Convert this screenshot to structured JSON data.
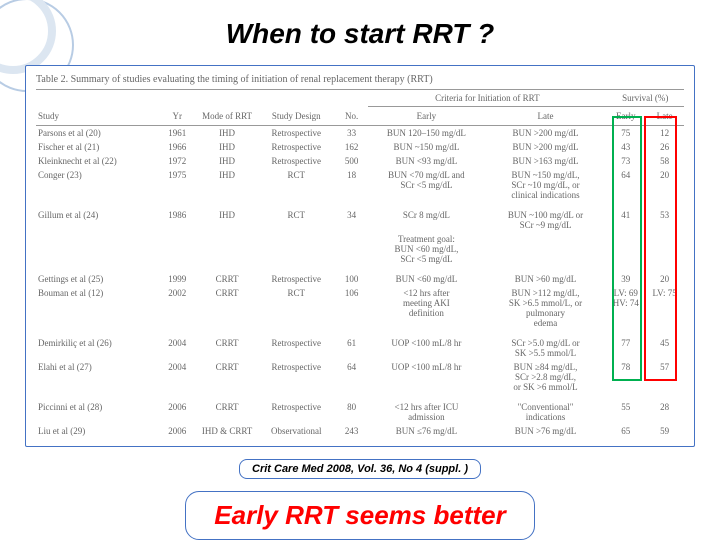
{
  "title": "When to start RRT ?",
  "table_caption": "Table 2. Summary of studies evaluating the timing of initiation of renal replacement therapy (RRT)",
  "spanner_criteria": "Criteria for Initiation of RRT",
  "spanner_survival": "Survival (%)",
  "headers": {
    "study": "Study",
    "yr": "Yr",
    "mode": "Mode of RRT",
    "design": "Study Design",
    "no": "No.",
    "early_crit": "Early",
    "late_crit": "Late",
    "early_surv": "Early",
    "late_surv": "Late"
  },
  "rows": [
    {
      "study": "Parsons et al (20)",
      "yr": "1961",
      "mode": "IHD",
      "design": "Retrospective",
      "no": "33",
      "ec": "BUN 120–150 mg/dL",
      "lc": "BUN >200 mg/dL",
      "es": "75",
      "ls": "12"
    },
    {
      "study": "Fischer et al (21)",
      "yr": "1966",
      "mode": "IHD",
      "design": "Retrospective",
      "no": "162",
      "ec": "BUN ~150 mg/dL",
      "lc": "BUN >200 mg/dL",
      "es": "43",
      "ls": "26"
    },
    {
      "study": "Kleinknecht et al (22)",
      "yr": "1972",
      "mode": "IHD",
      "design": "Retrospective",
      "no": "500",
      "ec": "BUN <93 mg/dL",
      "lc": "BUN >163 mg/dL",
      "es": "73",
      "ls": "58"
    },
    {
      "study": "Conger (23)",
      "yr": "1975",
      "mode": "IHD",
      "design": "RCT",
      "no": "18",
      "ec": "BUN <70 mg/dL and\nSCr <5 mg/dL",
      "lc": "BUN ~150 mg/dL,\nSCr ~10 mg/dL, or\nclinical indications",
      "es": "64",
      "ls": "20"
    },
    {
      "study": "Gillum et al (24)",
      "yr": "1986",
      "mode": "IHD",
      "design": "RCT",
      "no": "34",
      "ec": "SCr 8 mg/dL",
      "lc": "BUN ~100 mg/dL or\nSCr ~9 mg/dL",
      "es": "41",
      "ls": "53",
      "extra_ec": "Treatment goal:\nBUN <60 mg/dL,\nSCr <5 mg/dL"
    },
    {
      "study": "Gettings et al (25)",
      "yr": "1999",
      "mode": "CRRT",
      "design": "Retrospective",
      "no": "100",
      "ec": "BUN <60 mg/dL",
      "lc": "BUN >60 mg/dL",
      "es": "39",
      "ls": "20"
    },
    {
      "study": "Bouman et al (12)",
      "yr": "2002",
      "mode": "CRRT",
      "design": "RCT",
      "no": "106",
      "ec": "<12 hrs after\nmeeting AKI\ndefinition",
      "lc": "BUN >112 mg/dL,\nSK >6.5 mmol/L, or\npulmonary\nedema",
      "es": "LV: 69\nHV: 74",
      "ls": "LV: 75"
    },
    {
      "study": "Demirkiliç et al (26)",
      "yr": "2004",
      "mode": "CRRT",
      "design": "Retrospective",
      "no": "61",
      "ec": "UOP <100 mL/8 hr",
      "lc": "SCr >5.0 mg/dL or\nSK >5.5 mmol/L",
      "es": "77",
      "ls": "45"
    },
    {
      "study": "Elahi et al (27)",
      "yr": "2004",
      "mode": "CRRT",
      "design": "Retrospective",
      "no": "64",
      "ec": "UOP <100 mL/8 hr",
      "lc": "BUN ≥84 mg/dL,\nSCr >2.8 mg/dL,\nor SK >6 mmol/L",
      "es": "78",
      "ls": "57"
    },
    {
      "study": "Piccinni et al (28)",
      "yr": "2006",
      "mode": "CRRT",
      "design": "Retrospective",
      "no": "80",
      "ec": "<12 hrs after ICU\nadmission",
      "lc": "\"Conventional\"\nindications",
      "es": "55",
      "ls": "28"
    },
    {
      "study": "Liu et al (29)",
      "yr": "2006",
      "mode": "IHD & CRRT",
      "design": "Observational",
      "no": "243",
      "ec": "BUN ≤76 mg/dL",
      "lc": "BUN >76 mg/dL",
      "es": "65",
      "ls": "59"
    }
  ],
  "citation": "Crit Care Med 2008, Vol. 36, No 4 (suppl. )",
  "conclusion": "Early RRT seems better",
  "colors": {
    "border_blue": "#4472c4",
    "text_red": "#ff0000",
    "highlight_green": "#00b050"
  }
}
